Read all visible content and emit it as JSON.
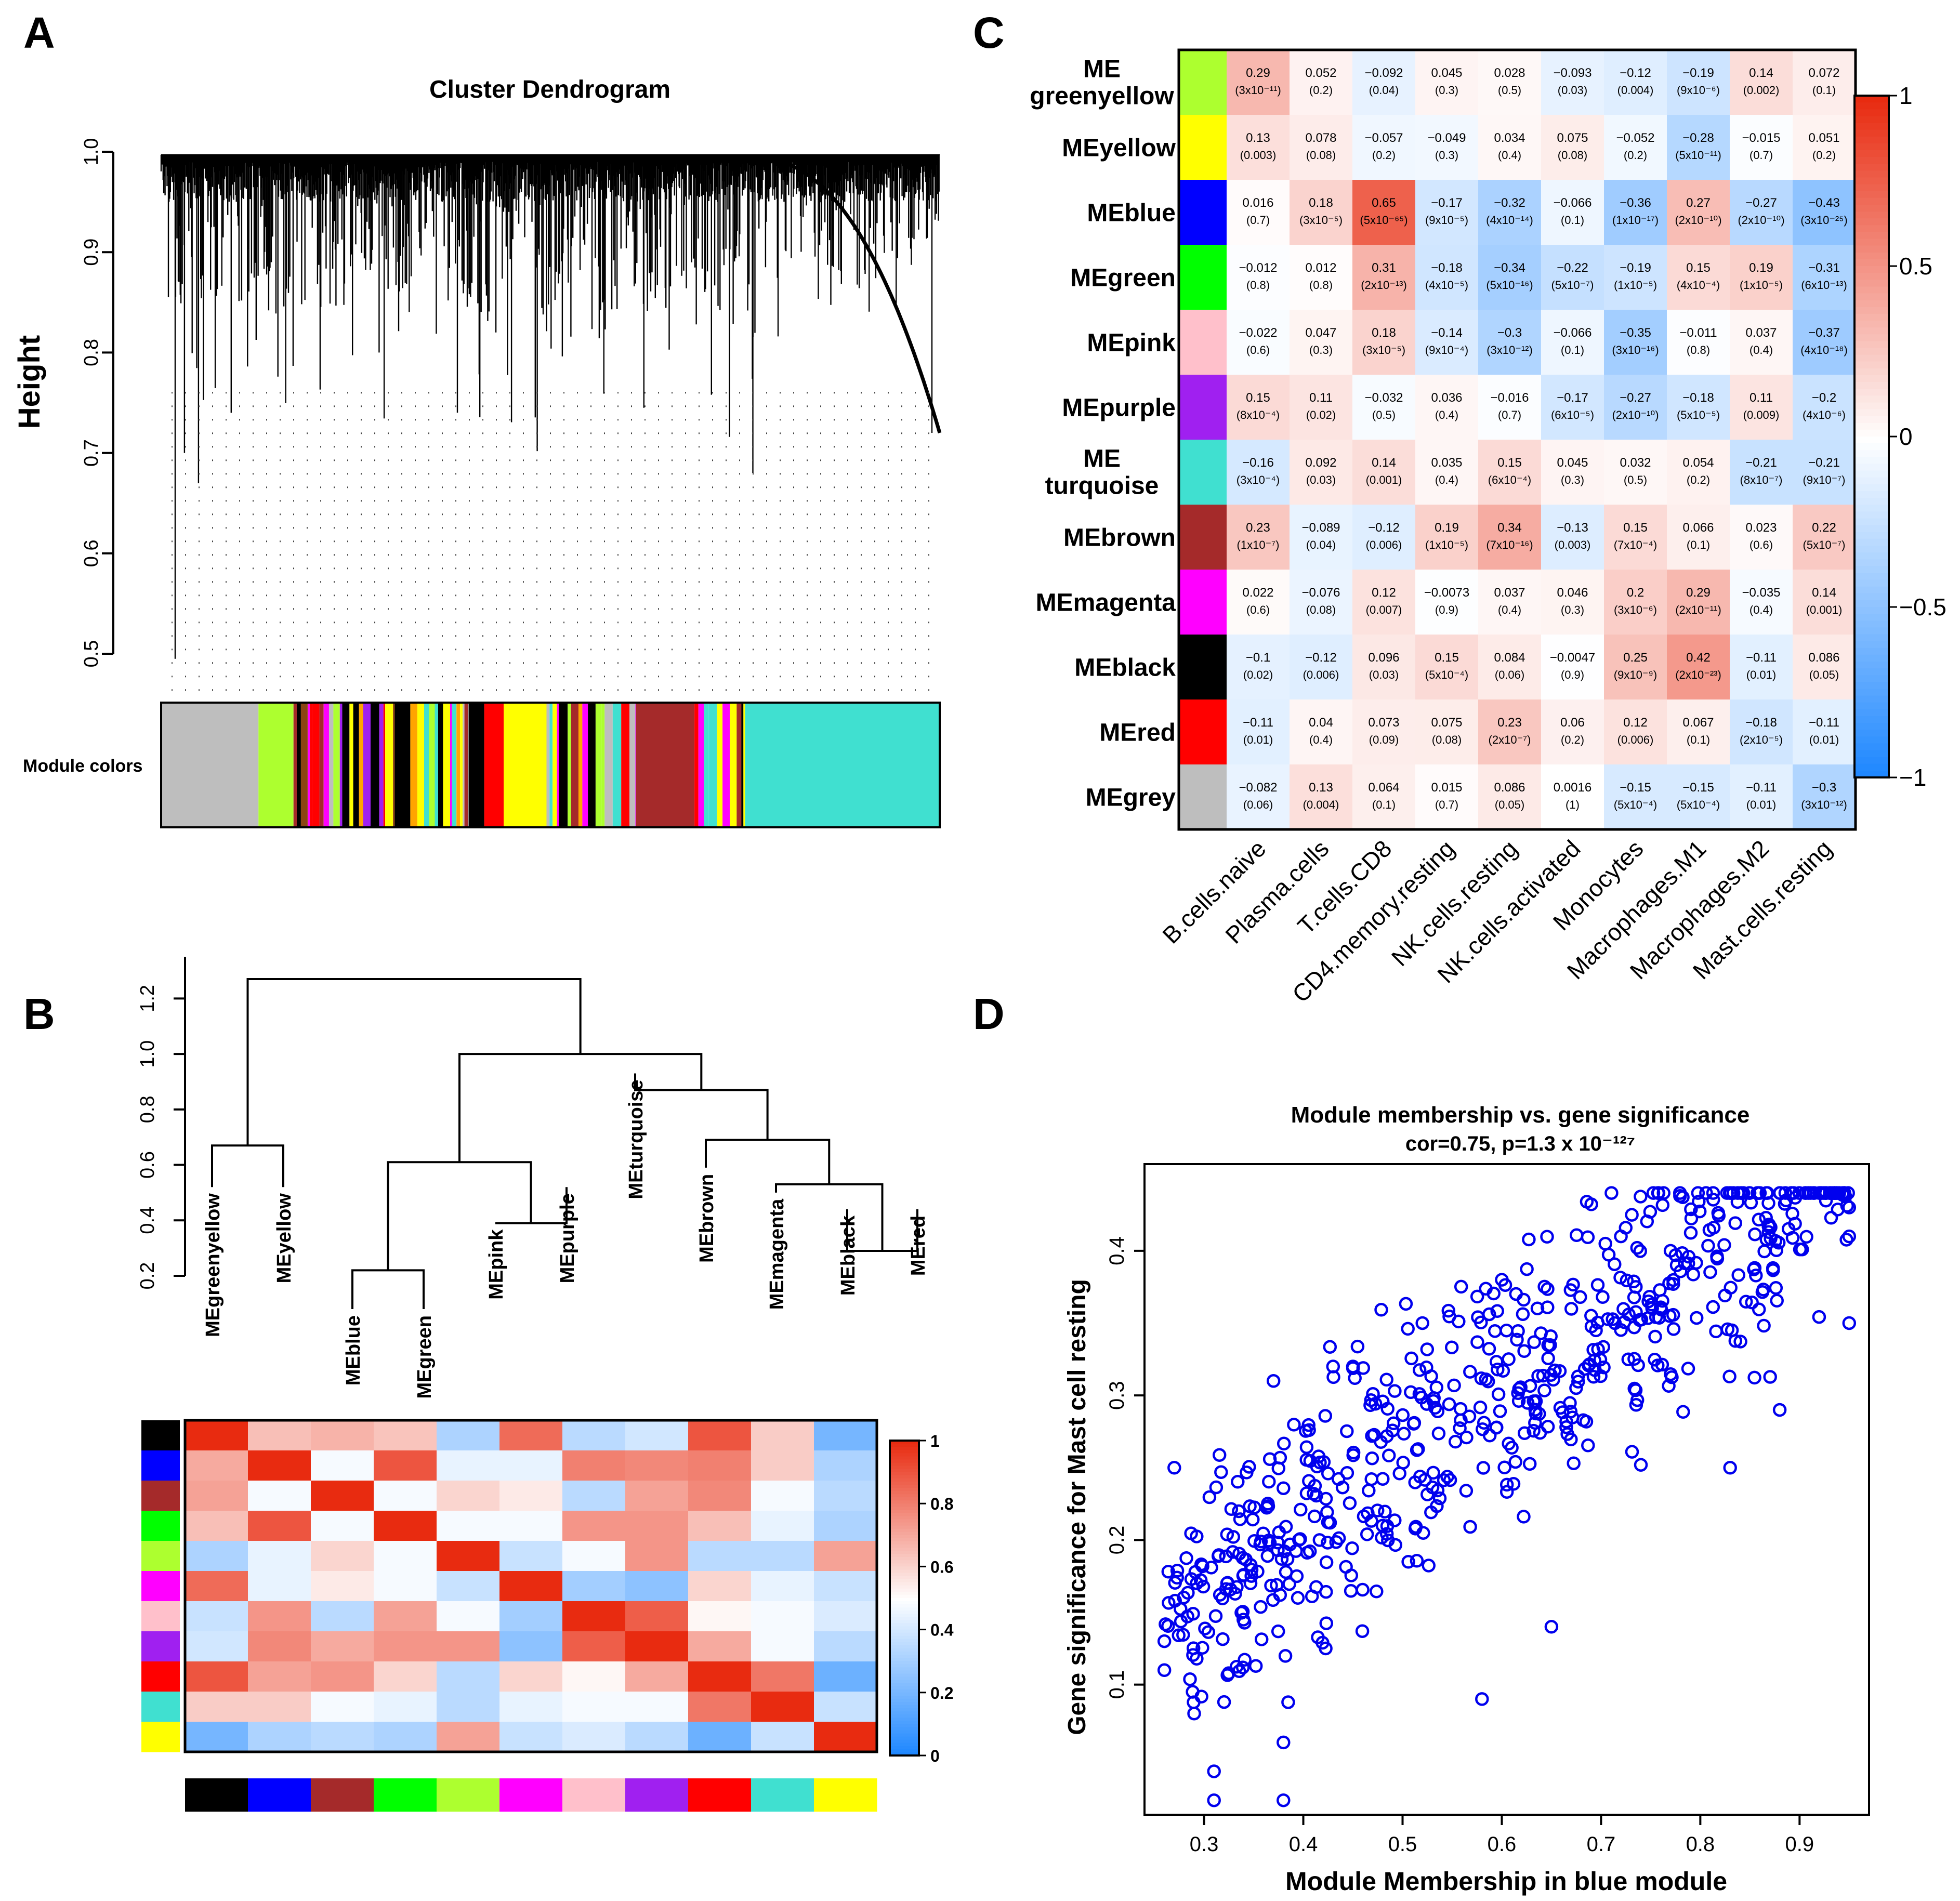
{
  "panels": {
    "a": "A",
    "b": "B",
    "c": "C",
    "d": "D"
  },
  "colors": {
    "greenyellow": "#adff2f",
    "yellow": "#ffff00",
    "blue": "#0000ff",
    "green": "#00ff00",
    "pink": "#ffc0cb",
    "purple": "#a020f0",
    "turquoise": "#40e0d0",
    "brown": "#a52a2a",
    "magenta": "#ff00ff",
    "black": "#000000",
    "red": "#ff0000",
    "grey": "#bebebe",
    "scatter_point": "#0000ee"
  },
  "chart_data": [
    {
      "id": "A",
      "type": "dendrogram",
      "title": "Cluster Dendrogram",
      "ylabel": "Height",
      "ylim": [
        0.5,
        1.0
      ],
      "yticks": [
        "0.5",
        "0.6",
        "0.7",
        "0.8",
        "0.9",
        "1.0"
      ],
      "module_colors_label": "Module colors",
      "module_color_sequence": [
        {
          "color": "grey",
          "share": 0.125
        },
        {
          "color": "greenyellow",
          "share": 0.045
        },
        {
          "color": "mixed",
          "share": 0.13
        },
        {
          "color": "black",
          "share": 0.02
        },
        {
          "color": "mixed",
          "share": 0.075
        },
        {
          "color": "black",
          "share": 0.02
        },
        {
          "color": "red",
          "share": 0.025
        },
        {
          "color": "yellow",
          "share": 0.055
        },
        {
          "color": "mixed",
          "share": 0.115
        },
        {
          "color": "brown",
          "share": 0.075
        },
        {
          "color": "mixed",
          "share": 0.065
        },
        {
          "color": "turquoise",
          "share": 0.25
        }
      ]
    },
    {
      "id": "B",
      "type": "heatmap",
      "dendrogram": {
        "yticks": [
          "0.2",
          "0.4",
          "0.6",
          "0.8",
          "1.0",
          "1.2"
        ],
        "ylim": [
          0.2,
          1.3
        ],
        "leaves": [
          "MEgreenyellow",
          "MEyellow",
          "MEblue",
          "MEgreen",
          "MEpink",
          "MEpurple",
          "MEturquoise",
          "MEbrown",
          "MEmagenta",
          "MEblack",
          "MEred"
        ],
        "leaf_heights": [
          0.52,
          0.52,
          0.08,
          0.08,
          0.39,
          0.52,
          0.93,
          0.59,
          0.5,
          0.44,
          0.44
        ],
        "merges": [
          {
            "a": 0,
            "b": 1,
            "height": 0.67
          },
          {
            "a": 2,
            "b": 3,
            "height": 0.22
          },
          {
            "a": 4,
            "b": 5,
            "height": 0.39
          },
          {
            "a": "m1",
            "b": "m2",
            "height": 0.61
          },
          {
            "a": 9,
            "b": 10,
            "height": 0.29
          },
          {
            "a": 8,
            "b": "m4",
            "height": 0.53
          },
          {
            "a": 7,
            "b": "m5",
            "height": 0.69
          },
          {
            "a": 6,
            "b": "m6",
            "height": 0.87
          },
          {
            "a": "m3",
            "b": "m7",
            "height": 1.0
          },
          {
            "a": "m0",
            "b": "m8",
            "height": 1.27
          }
        ]
      },
      "row_colors": [
        "black",
        "blue",
        "brown",
        "green",
        "greenyellow",
        "magenta",
        "pink",
        "purple",
        "red",
        "turquoise",
        "yellow"
      ],
      "col_colors": [
        "black",
        "blue",
        "brown",
        "green",
        "greenyellow",
        "magenta",
        "pink",
        "purple",
        "red",
        "turquoise",
        "yellow"
      ],
      "legend_ticks": [
        "0",
        "0.2",
        "0.4",
        "0.6",
        "0.8",
        "1"
      ],
      "matrix": [
        [
          1,
          0.65,
          0.68,
          0.64,
          0.32,
          0.85,
          0.35,
          0.4,
          0.9,
          0.62,
          0.2
        ],
        [
          0.7,
          1,
          0.48,
          0.9,
          0.45,
          0.45,
          0.8,
          0.78,
          0.8,
          0.62,
          0.32
        ],
        [
          0.72,
          0.48,
          1,
          0.48,
          0.6,
          0.55,
          0.35,
          0.72,
          0.78,
          0.48,
          0.35
        ],
        [
          0.65,
          0.9,
          0.48,
          1,
          0.48,
          0.48,
          0.75,
          0.75,
          0.65,
          0.45,
          0.32
        ],
        [
          0.32,
          0.45,
          0.6,
          0.48,
          1,
          0.38,
          0.48,
          0.75,
          0.35,
          0.35,
          0.72
        ],
        [
          0.85,
          0.45,
          0.55,
          0.48,
          0.38,
          1,
          0.3,
          0.25,
          0.6,
          0.45,
          0.38
        ],
        [
          0.38,
          0.75,
          0.35,
          0.72,
          0.48,
          0.3,
          1,
          0.88,
          0.52,
          0.48,
          0.42
        ],
        [
          0.4,
          0.78,
          0.7,
          0.75,
          0.75,
          0.25,
          0.88,
          1,
          0.7,
          0.48,
          0.35
        ],
        [
          0.9,
          0.72,
          0.75,
          0.6,
          0.35,
          0.6,
          0.52,
          0.7,
          1,
          0.82,
          0.18
        ],
        [
          0.62,
          0.62,
          0.48,
          0.45,
          0.35,
          0.45,
          0.48,
          0.48,
          0.82,
          1,
          0.38
        ],
        [
          0.2,
          0.32,
          0.35,
          0.32,
          0.72,
          0.38,
          0.42,
          0.35,
          0.18,
          0.38,
          1
        ]
      ]
    },
    {
      "id": "C",
      "type": "heatmap",
      "rows": [
        {
          "label": [
            "ME",
            "greenyellow"
          ],
          "color": "greenyellow"
        },
        {
          "label": [
            "MEyellow"
          ],
          "color": "yellow"
        },
        {
          "label": [
            "MEblue"
          ],
          "color": "blue"
        },
        {
          "label": [
            "MEgreen"
          ],
          "color": "green"
        },
        {
          "label": [
            "MEpink"
          ],
          "color": "pink"
        },
        {
          "label": [
            "MEpurple"
          ],
          "color": "purple"
        },
        {
          "label": [
            "ME",
            "turquoise"
          ],
          "color": "turquoise"
        },
        {
          "label": [
            "MEbrown"
          ],
          "color": "brown"
        },
        {
          "label": [
            "MEmagenta"
          ],
          "color": "magenta"
        },
        {
          "label": [
            "MEblack"
          ],
          "color": "black"
        },
        {
          "label": [
            "MEred"
          ],
          "color": "red"
        },
        {
          "label": [
            "MEgrey"
          ],
          "color": "grey"
        }
      ],
      "columns": [
        "B.cells.naive",
        "Plasma.cells",
        "T.cells.CD8",
        "CD4.memory.resting",
        "NK.cells.resting",
        "NK.cells.activated",
        "Monocytes",
        "Macrophages.M1",
        "Macrophages.M2",
        "Mast.cells.resting"
      ],
      "legend_ticks": [
        "1",
        "0.5",
        "0",
        "−0.5",
        "−1"
      ],
      "values": [
        [
          "0.29",
          "0.052",
          "−0.092",
          "0.045",
          "0.028",
          "−0.093",
          "−0.12",
          "−0.19",
          "0.14",
          "0.072"
        ],
        [
          "0.13",
          "0.078",
          "−0.057",
          "−0.049",
          "0.034",
          "0.075",
          "−0.052",
          "−0.28",
          "−0.015",
          "0.051"
        ],
        [
          "0.016",
          "0.18",
          "0.65",
          "−0.17",
          "−0.32",
          "−0.066",
          "−0.36",
          "0.27",
          "−0.27",
          "−0.43"
        ],
        [
          "−0.012",
          "0.012",
          "0.31",
          "−0.18",
          "−0.34",
          "−0.22",
          "−0.19",
          "0.15",
          "0.19",
          "−0.31"
        ],
        [
          "−0.022",
          "0.047",
          "0.18",
          "−0.14",
          "−0.3",
          "−0.066",
          "−0.35",
          "−0.011",
          "0.037",
          "−0.37"
        ],
        [
          "0.15",
          "0.11",
          "−0.032",
          "0.036",
          "−0.016",
          "−0.17",
          "−0.27",
          "−0.18",
          "0.11",
          "−0.2"
        ],
        [
          "−0.16",
          "0.092",
          "0.14",
          "0.035",
          "0.15",
          "0.045",
          "0.032",
          "0.054",
          "−0.21",
          "−0.21"
        ],
        [
          "0.23",
          "−0.089",
          "−0.12",
          "0.19",
          "0.34",
          "−0.13",
          "0.15",
          "0.066",
          "0.023",
          "0.22"
        ],
        [
          "0.022",
          "−0.076",
          "0.12",
          "−0.0073",
          "0.037",
          "0.046",
          "0.2",
          "0.29",
          "−0.035",
          "0.14"
        ],
        [
          "−0.1",
          "−0.12",
          "0.096",
          "0.15",
          "0.084",
          "−0.0047",
          "0.25",
          "0.42",
          "−0.11",
          "0.086"
        ],
        [
          "−0.11",
          "0.04",
          "0.073",
          "0.075",
          "0.23",
          "0.06",
          "0.12",
          "0.067",
          "−0.18",
          "−0.11"
        ],
        [
          "−0.082",
          "0.13",
          "0.064",
          "0.015",
          "0.086",
          "0.0016",
          "−0.15",
          "−0.15",
          "−0.11",
          "−0.3"
        ]
      ],
      "pvalues": [
        [
          "(3x10⁻¹¹)",
          "(0.2)",
          "(0.04)",
          "(0.3)",
          "(0.5)",
          "(0.03)",
          "(0.004)",
          "(9x10⁻⁶)",
          "(0.002)",
          "(0.1)"
        ],
        [
          "(0.003)",
          "(0.08)",
          "(0.2)",
          "(0.3)",
          "(0.4)",
          "(0.08)",
          "(0.2)",
          "(5x10⁻¹¹)",
          "(0.7)",
          "(0.2)"
        ],
        [
          "(0.7)",
          "(3x10⁻⁵)",
          "(5x10⁻⁶⁵)",
          "(9x10⁻⁵)",
          "(4x10⁻¹⁴)",
          "(0.1)",
          "(1x10⁻¹⁷)",
          "(2x10⁻¹⁰)",
          "(2x10⁻¹⁰)",
          "(3x10⁻²⁵)"
        ],
        [
          "(0.8)",
          "(0.8)",
          "(2x10⁻¹³)",
          "(4x10⁻⁵)",
          "(5x10⁻¹⁶)",
          "(5x10⁻⁷)",
          "(1x10⁻⁵)",
          "(4x10⁻⁴)",
          "(1x10⁻⁵)",
          "(6x10⁻¹³)"
        ],
        [
          "(0.6)",
          "(0.3)",
          "(3x10⁻⁵)",
          "(9x10⁻⁴)",
          "(3x10⁻¹²)",
          "(0.1)",
          "(3x10⁻¹⁶)",
          "(0.8)",
          "(0.4)",
          "(4x10⁻¹⁸)"
        ],
        [
          "(8x10⁻⁴)",
          "(0.02)",
          "(0.5)",
          "(0.4)",
          "(0.7)",
          "(6x10⁻⁵)",
          "(2x10⁻¹⁰)",
          "(5x10⁻⁵)",
          "(0.009)",
          "(4x10⁻⁶)"
        ],
        [
          "(3x10⁻⁴)",
          "(0.03)",
          "(0.001)",
          "(0.4)",
          "(6x10⁻⁴)",
          "(0.3)",
          "(0.5)",
          "(0.2)",
          "(8x10⁻⁷)",
          "(9x10⁻⁷)"
        ],
        [
          "(1x10⁻⁷)",
          "(0.04)",
          "(0.006)",
          "(1x10⁻⁵)",
          "(7x10⁻¹⁶)",
          "(0.003)",
          "(7x10⁻⁴)",
          "(0.1)",
          "(0.6)",
          "(5x10⁻⁷)"
        ],
        [
          "(0.6)",
          "(0.08)",
          "(0.007)",
          "(0.9)",
          "(0.4)",
          "(0.3)",
          "(3x10⁻⁶)",
          "(2x10⁻¹¹)",
          "(0.4)",
          "(0.001)"
        ],
        [
          "(0.02)",
          "(0.006)",
          "(0.03)",
          "(5x10⁻⁴)",
          "(0.06)",
          "(0.9)",
          "(9x10⁻⁹)",
          "(2x10⁻²³)",
          "(0.01)",
          "(0.05)"
        ],
        [
          "(0.01)",
          "(0.4)",
          "(0.09)",
          "(0.08)",
          "(2x10⁻⁷)",
          "(0.2)",
          "(0.006)",
          "(0.1)",
          "(2x10⁻⁵)",
          "(0.01)"
        ],
        [
          "(0.06)",
          "(0.004)",
          "(0.1)",
          "(0.7)",
          "(0.05)",
          "(1)",
          "(5x10⁻⁴)",
          "(5x10⁻⁴)",
          "(0.01)",
          "(3x10⁻¹²)"
        ]
      ]
    },
    {
      "id": "D",
      "type": "scatter",
      "title": "Module membership vs. gene significance",
      "subtitle": "cor=0.75, p=1.3 x 10⁻¹²⁷",
      "xlabel": "Module Membership in blue module",
      "ylabel": "Gene significance for Mast cell resting",
      "xlim": [
        0.24,
        0.97
      ],
      "ylim": [
        0.01,
        0.46
      ],
      "xticks": [
        "0.3",
        "0.4",
        "0.5",
        "0.6",
        "0.7",
        "0.8",
        "0.9"
      ],
      "yticks": [
        "0.1",
        "0.2",
        "0.3",
        "0.4"
      ],
      "n_points": 640,
      "trend": {
        "slope": 0.47,
        "intercept": -0.05,
        "residual_sd": 0.048
      },
      "sample_points": [
        [
          0.31,
          0.02
        ],
        [
          0.31,
          0.04
        ],
        [
          0.38,
          0.02
        ],
        [
          0.38,
          0.06
        ],
        [
          0.27,
          0.25
        ],
        [
          0.37,
          0.31
        ],
        [
          0.43,
          0.32
        ],
        [
          0.58,
          0.09
        ],
        [
          0.6,
          0.38
        ],
        [
          0.65,
          0.14
        ],
        [
          0.72,
          0.41
        ],
        [
          0.77,
          0.4
        ],
        [
          0.86,
          0.44
        ],
        [
          0.88,
          0.44
        ],
        [
          0.94,
          0.44
        ],
        [
          0.95,
          0.43
        ],
        [
          0.95,
          0.41
        ],
        [
          0.95,
          0.35
        ],
        [
          0.83,
          0.25
        ],
        [
          0.88,
          0.29
        ],
        [
          0.26,
          0.13
        ],
        [
          0.26,
          0.11
        ],
        [
          0.29,
          0.08
        ],
        [
          0.45,
          0.32
        ],
        [
          0.52,
          0.35
        ]
      ]
    }
  ]
}
